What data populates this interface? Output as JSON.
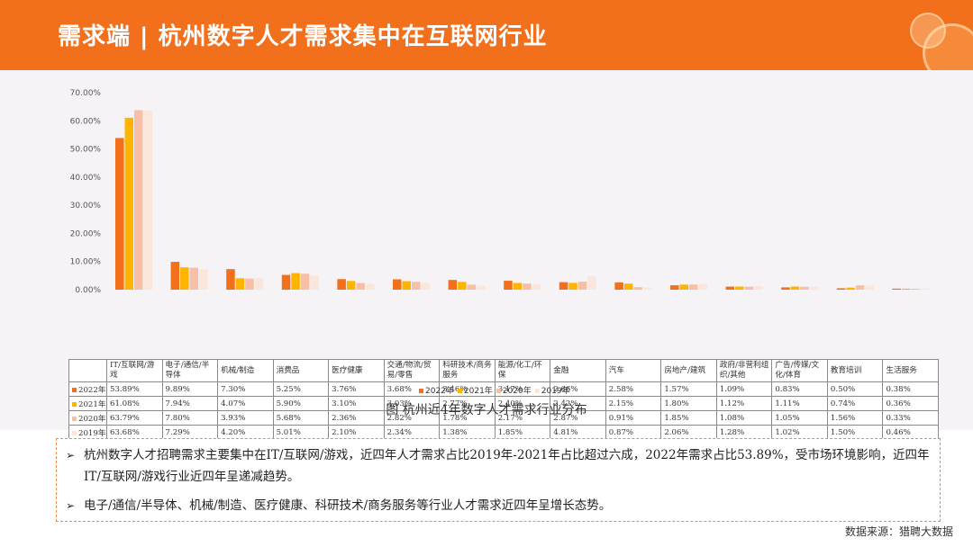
{
  "header": {
    "title": "需求端 | 杭州数字人才需求集中在互联网行业"
  },
  "chart_data": {
    "type": "bar",
    "ylim": [
      0,
      70
    ],
    "ytick_labels": [
      "0.00%",
      "10.00%",
      "20.00%",
      "30.00%",
      "40.00%",
      "50.00%",
      "60.00%",
      "70.00%"
    ],
    "categories": [
      "IT/互联网/游戏",
      "电子/通信/半导体",
      "机械/制造",
      "消费品",
      "医疗健康",
      "交通/物流/贸易/零售",
      "科研技术/商务服务",
      "能源/化工/环保",
      "金融",
      "汽车",
      "房地产/建筑",
      "政府/非营利组织/其他",
      "广告/传媒/文化/体育",
      "教育培训",
      "生活服务"
    ],
    "series": [
      {
        "name": "2022年",
        "color": "#f26f1b",
        "values": [
          53.89,
          9.89,
          7.3,
          5.25,
          3.76,
          3.68,
          3.46,
          3.17,
          2.66,
          2.58,
          1.57,
          1.09,
          0.83,
          0.5,
          0.38
        ],
        "labels": [
          "53.89%",
          "9.89%",
          "7.30%",
          "5.25%",
          "3.76%",
          "3.68%",
          "3.46%",
          "3.17%",
          "2.66%",
          "2.58%",
          "1.57%",
          "1.09%",
          "0.83%",
          "0.50%",
          "0.38%"
        ]
      },
      {
        "name": "2021年",
        "color": "#ffb400",
        "values": [
          61.08,
          7.94,
          4.07,
          5.9,
          3.1,
          3.03,
          2.77,
          2.4,
          2.42,
          2.15,
          1.8,
          1.12,
          1.11,
          0.74,
          0.36
        ],
        "labels": [
          "61.08%",
          "7.94%",
          "4.07%",
          "5.90%",
          "3.10%",
          "3.03%",
          "2.77%",
          "2.40%",
          "2.42%",
          "2.15%",
          "1.80%",
          "1.12%",
          "1.11%",
          "0.74%",
          "0.36%"
        ]
      },
      {
        "name": "2020年",
        "color": "#f6bfa6",
        "values": [
          63.79,
          7.8,
          3.93,
          5.68,
          2.36,
          2.82,
          1.78,
          2.17,
          2.87,
          0.91,
          1.85,
          1.08,
          1.05,
          1.56,
          0.33
        ],
        "labels": [
          "63.79%",
          "7.80%",
          "3.93%",
          "5.68%",
          "2.36%",
          "2.82%",
          "1.78%",
          "2.17%",
          "2.87%",
          "0.91%",
          "1.85%",
          "1.08%",
          "1.05%",
          "1.56%",
          "0.33%"
        ]
      },
      {
        "name": "2019年",
        "color": "#fbe6dc",
        "values": [
          63.68,
          7.29,
          4.2,
          5.01,
          2.1,
          2.34,
          1.38,
          1.85,
          4.81,
          0.87,
          2.06,
          1.28,
          1.02,
          1.5,
          0.46
        ],
        "labels": [
          "63.68%",
          "7.29%",
          "4.20%",
          "5.01%",
          "2.10%",
          "2.34%",
          "1.38%",
          "1.85%",
          "4.81%",
          "0.87%",
          "2.06%",
          "1.28%",
          "1.02%",
          "1.50%",
          "0.46%"
        ]
      }
    ],
    "grid": false,
    "legend_position": "bottom",
    "caption": "图 杭州近4年数字人才需求行业分布"
  },
  "notes": [
    "杭州数字人才招聘需求主要集中在IT/互联网/游戏，近四年人才需求占比2019年-2021年占比超过六成，2022年需求占比53.89%，受市场环境影响，近四年IT/互联网/游戏行业近四年呈递减趋势。",
    "电子/通信/半导体、机械/制造、医疗健康、科研技术/商务服务等行业人才需求近四年呈增长态势。"
  ],
  "note_arrow": "➢",
  "source": "数据来源：猎聘大数据"
}
